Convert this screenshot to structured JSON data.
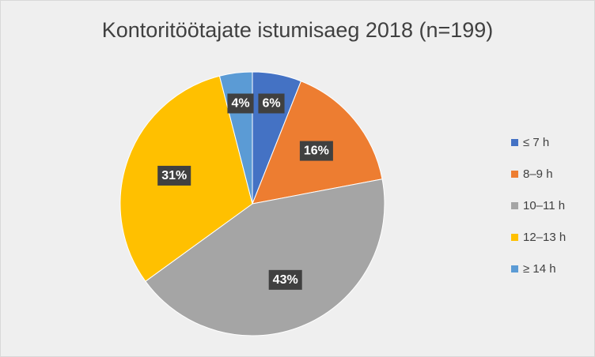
{
  "chart_data": {
    "type": "pie",
    "title": "Kontoritöötajate istumisaeg 2018 (n=199)",
    "legend_position": "right",
    "slices": [
      {
        "label": "≤ 7 h",
        "value": 6,
        "value_label": "6%",
        "color": "#4472c4"
      },
      {
        "label": "8–9 h",
        "value": 16,
        "value_label": "16%",
        "color": "#ed7d31"
      },
      {
        "label": "10–11 h",
        "value": 43,
        "value_label": "43%",
        "color": "#a5a5a5"
      },
      {
        "label": "12–13 h",
        "value": 31,
        "value_label": "31%",
        "color": "#ffc000"
      },
      {
        "label": "≥ 14 h",
        "value": 4,
        "value_label": "4%",
        "color": "#5b9bd5"
      }
    ]
  }
}
